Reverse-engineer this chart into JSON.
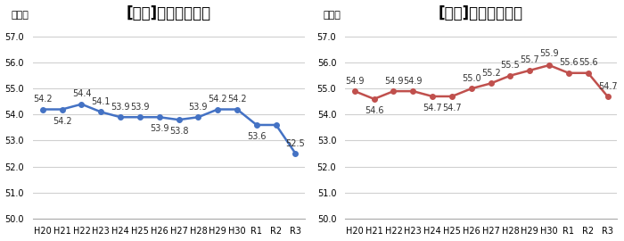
{
  "categories": [
    "H20",
    "H21",
    "H22",
    "H23",
    "H24",
    "H25",
    "H26",
    "H27",
    "H28",
    "H29",
    "H30",
    "R1",
    "R2",
    "R3"
  ],
  "boys_values": [
    54.2,
    54.2,
    54.4,
    54.1,
    53.9,
    53.9,
    53.9,
    53.8,
    53.9,
    54.2,
    54.2,
    53.6,
    53.6,
    52.5
  ],
  "boys_labels": [
    "54.2",
    "54.2",
    "54.4",
    "54.1",
    "53.9",
    "53.9",
    "53.9",
    "53.8",
    "53.9",
    "54.2",
    "54.2",
    "53.6",
    "",
    "52.5"
  ],
  "girls_values": [
    54.9,
    54.6,
    54.9,
    54.9,
    54.7,
    54.7,
    55.0,
    55.2,
    55.5,
    55.7,
    55.9,
    55.6,
    55.6,
    54.7
  ],
  "girls_labels": [
    "54.9",
    "54.6",
    "54.9",
    "54.9",
    "54.7",
    "54.7",
    "55.0",
    "55.2",
    "55.5",
    "55.7",
    "55.9",
    "55.6",
    "55.6",
    "54.7"
  ],
  "boys_color": "#4472C4",
  "girls_color": "#C0504D",
  "boys_title": "[男子]　体力合計点",
  "girls_title": "[女子]　体力合計点",
  "ylabel": "（点）",
  "ylim_min": 50.0,
  "ylim_max": 57.5,
  "ylim_max_display": 57.0,
  "yticks": [
    50.0,
    51.0,
    52.0,
    53.0,
    54.0,
    55.0,
    56.0,
    57.0
  ],
  "background_color": "#ffffff",
  "grid_color": "#d0d0d0",
  "title_fontsize": 12,
  "label_fontsize": 7,
  "tick_fontsize": 7,
  "ylabel_fontsize": 8,
  "marker": "o",
  "markersize": 4,
  "linewidth": 1.8
}
